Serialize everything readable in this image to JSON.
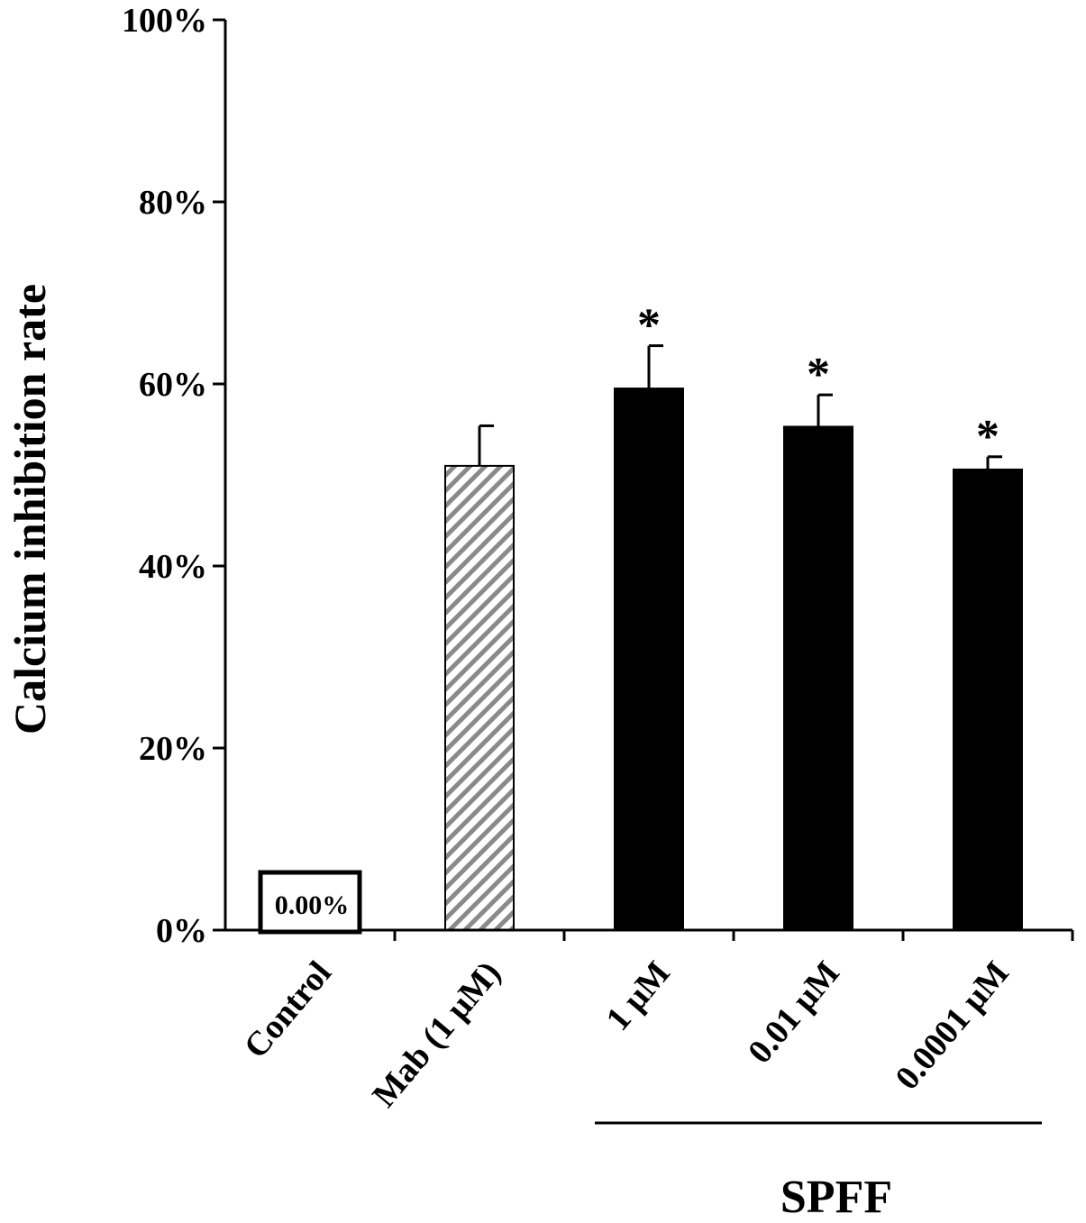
{
  "chart_data": {
    "type": "bar",
    "ylabel": "Calcium inhibition rate",
    "ylim": [
      0,
      100
    ],
    "yticks": [
      "0%",
      "20%",
      "40%",
      "60%",
      "80%",
      "100%"
    ],
    "categories": [
      "Control",
      "Mab (1 μM)",
      "1 μM",
      "0.01 μM",
      "0.0001 μM"
    ],
    "values": [
      0,
      51,
      59.5,
      55.3,
      50.6
    ],
    "errors": [
      0,
      4.4,
      4.7,
      3.5,
      1.4
    ],
    "significance": [
      "",
      "",
      "*",
      "*",
      "*"
    ],
    "fills": [
      "none",
      "hatched",
      "black",
      "black",
      "black"
    ],
    "control_value_label": "0.00%",
    "group": {
      "label": "SPFF",
      "categories": [
        "1 μM",
        "0.01 μM",
        "0.0001 μM"
      ]
    },
    "colors": {
      "bar": "#000000",
      "hatch": "#8a8a8a",
      "axis": "#000000"
    }
  }
}
